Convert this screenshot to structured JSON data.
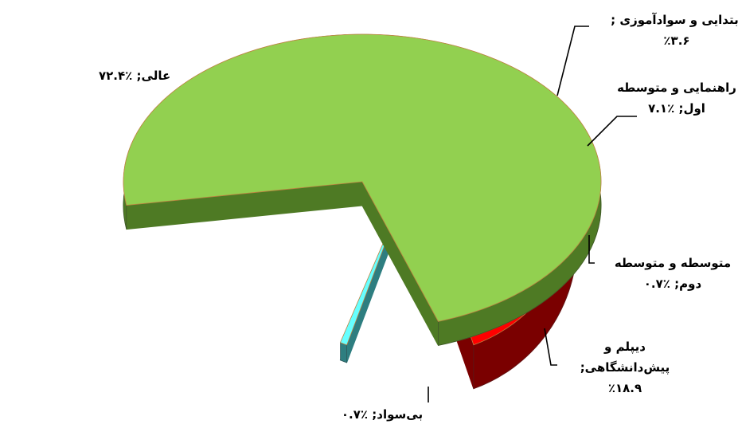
{
  "chart_data": {
    "type": "pie",
    "style": "3d-exploded",
    "slices": [
      {
        "label": "عالی",
        "value": 72.4,
        "value_text": "٪۷۲.۴",
        "color": "#92D050",
        "side_color": "#4E7A24"
      },
      {
        "label": "ابتدایی و سوادآموزی",
        "value": 3.6,
        "value_text": "٪۳.۶",
        "color": "#FF33CC",
        "side_color": "#7A1060"
      },
      {
        "label": "راهنمایی و متوسطه اول",
        "value": 7.1,
        "value_text": "٪۷.۱",
        "color": "#66FFFF",
        "side_color": "#2E7E80"
      },
      {
        "label": "متوسطه و متوسطه دوم",
        "value": 0.7,
        "value_text": "٪۰.۷",
        "color": "#FFFF00",
        "side_color": "#7A7A00"
      },
      {
        "label": "دیپلم و پیش‌دانشگاهی",
        "value": 18.9,
        "value_text": "٪۱۸.۹",
        "color": "#FF0000",
        "side_color": "#7A0000"
      },
      {
        "label": "بی‌سواد",
        "value": 0.7,
        "value_text": "٪۰.۷",
        "color": "#66FFFF",
        "side_color": "#2E7E80"
      }
    ],
    "data_labels": [
      {
        "lines": [
          "عالی; ٪۷۲.۴"
        ]
      },
      {
        "lines": [
          "ابتدایی و سوادآموزی ;",
          "٪۳.۶"
        ]
      },
      {
        "lines": [
          "راهنمایی و متوسطه",
          "اول; ٪۷.۱"
        ]
      },
      {
        "lines": [
          "متوسطه و متوسطه",
          "دوم; ٪۰.۷"
        ]
      },
      {
        "lines": [
          "دیپلم و",
          "پیش‌دانشگاهی;",
          "٪۱۸.۹"
        ]
      },
      {
        "lines": [
          "بی‌سواد; ٪۰.۷"
        ]
      }
    ]
  }
}
